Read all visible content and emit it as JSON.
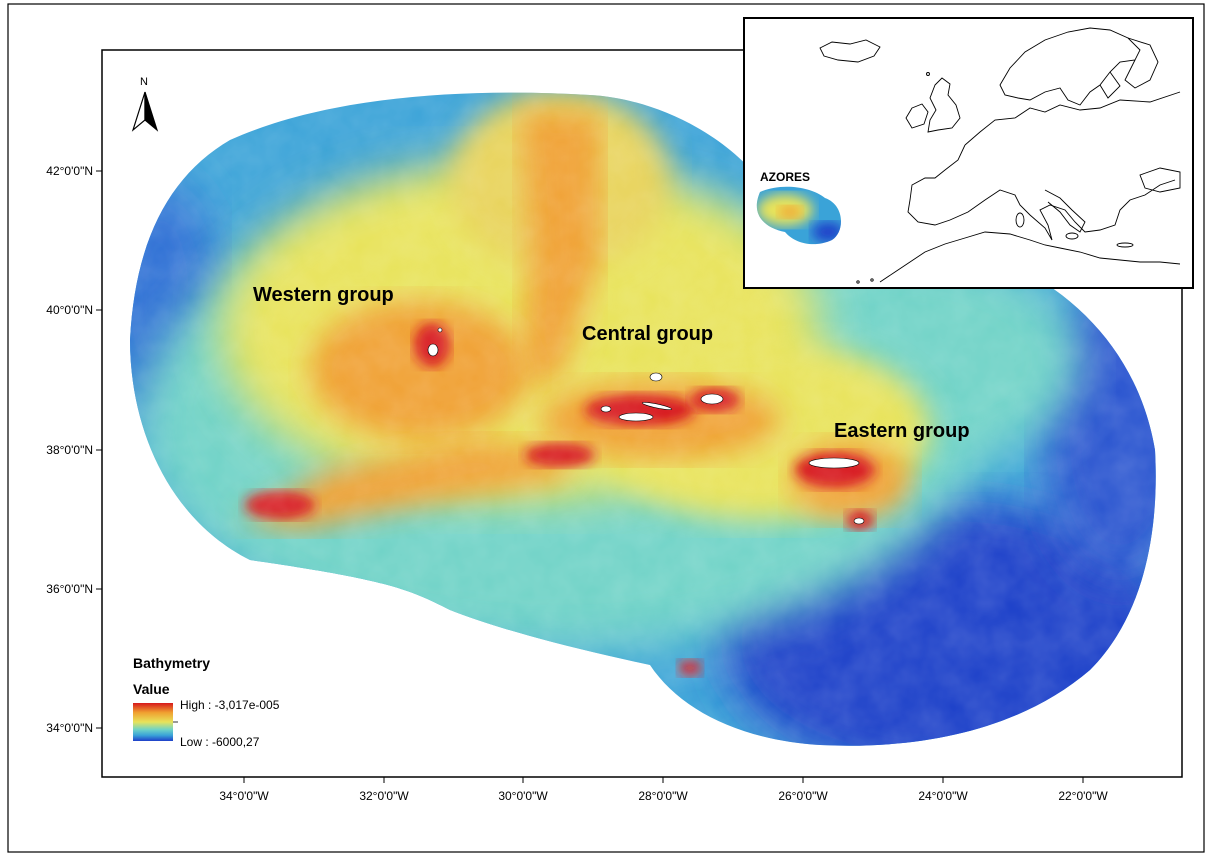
{
  "map": {
    "group_labels": {
      "western": "Western group",
      "central": "Central group",
      "eastern": "Eastern group"
    },
    "north_arrow_label": "N",
    "lat_ticks": [
      "42°0'0\"N",
      "40°0'0\"N",
      "38°0'0\"N",
      "36°0'0\"N",
      "34°0'0\"N"
    ],
    "lon_ticks": [
      "34°0'0\"W",
      "32°0'0\"W",
      "30°0'0\"W",
      "28°0'0\"W",
      "26°0'0\"W",
      "24°0'0\"W",
      "22°0'0\"W"
    ],
    "legend": {
      "title": "Bathymetry",
      "subtitle": "Value",
      "high": "High : -3,017e-005",
      "low": "Low : -6000,27"
    },
    "inset": {
      "label": "AZORES"
    }
  },
  "colors": {
    "deep": "#1f3fc9",
    "mid_deep": "#3aa3d8",
    "mid": "#6fd3c7",
    "mid_shallow": "#e8e35a",
    "shallow": "#f0a030",
    "peak": "#d7191c",
    "land": "#ffffff",
    "frame": "#000000"
  }
}
